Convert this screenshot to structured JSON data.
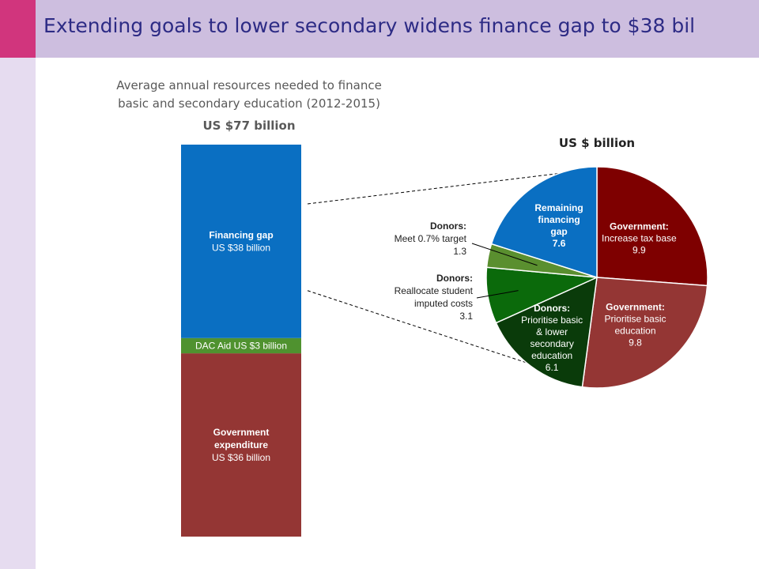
{
  "slide": {
    "title": "Extending goals to lower secondary widens finance gap to $38 bil",
    "subtitle_lines": [
      "Average annual resources needed to finance",
      "basic and secondary education (2012-2015)"
    ],
    "total_label": "US $77 billion",
    "pie_unit_label": "US $ billion"
  },
  "colors": {
    "government_expenditure": "#943634",
    "dac_aid": "#4f922f",
    "financing_gap": "#0a6fc2",
    "top_sliver": "#2e8a34",
    "gov_tax_base": "#7e0000",
    "gov_prioritise": "#943634",
    "donors_prioritise": "#0a3b0a",
    "donors_reallocate": "#0b6a0b",
    "donors_meet": "#5a8f2f",
    "remaining_gap": "#0a6fc2",
    "title_band": "#cdbedf",
    "accent_pink": "#d1357d"
  },
  "chart_data": [
    {
      "type": "bar",
      "stacked": true,
      "title": "US $77 billion",
      "total": 77,
      "segments": [
        {
          "key": "government_expenditure",
          "value": 36,
          "lines": [
            {
              "text": "Government",
              "bold": true
            },
            {
              "text": "expenditure",
              "bold": true
            },
            {
              "text": "US $36 billion",
              "bold": false
            }
          ]
        },
        {
          "key": "dac_aid",
          "value": 3,
          "lines": [
            {
              "text": "DAC Aid US $3 billion",
              "bold": false
            }
          ]
        },
        {
          "key": "financing_gap",
          "value": 38,
          "lines": [
            {
              "text": "Financing gap",
              "bold": true
            },
            {
              "text": "US $38 billion",
              "bold": false
            }
          ]
        }
      ]
    },
    {
      "type": "pie",
      "title": "US $ billion",
      "slices": [
        {
          "key": "gov_tax_base",
          "value": 9.9,
          "value_label": "9.9",
          "heading": "Government:",
          "lines": [
            "Increase tax base"
          ]
        },
        {
          "key": "gov_prioritise",
          "value": 9.8,
          "value_label": "9.8",
          "heading": "Government:",
          "lines": [
            "Prioritise basic",
            "education"
          ]
        },
        {
          "key": "donors_prioritise",
          "value": 6.1,
          "value_label": "6.1",
          "heading": "Donors:",
          "lines": [
            "Prioritise basic",
            "& lower",
            "secondary",
            "education"
          ]
        },
        {
          "key": "donors_reallocate",
          "value": 3.1,
          "value_label": "3.1",
          "heading": "Donors:",
          "lines": [
            "Reallocate student",
            "imputed costs"
          ]
        },
        {
          "key": "donors_meet",
          "value": 1.3,
          "value_label": "1.3",
          "heading": "Donors:",
          "lines": [
            "Meet 0.7% target"
          ]
        },
        {
          "key": "remaining_gap",
          "value": 7.6,
          "value_label": "7.6",
          "heading": "",
          "lines": [
            "Remaining",
            "financing",
            "gap"
          ]
        }
      ]
    }
  ]
}
